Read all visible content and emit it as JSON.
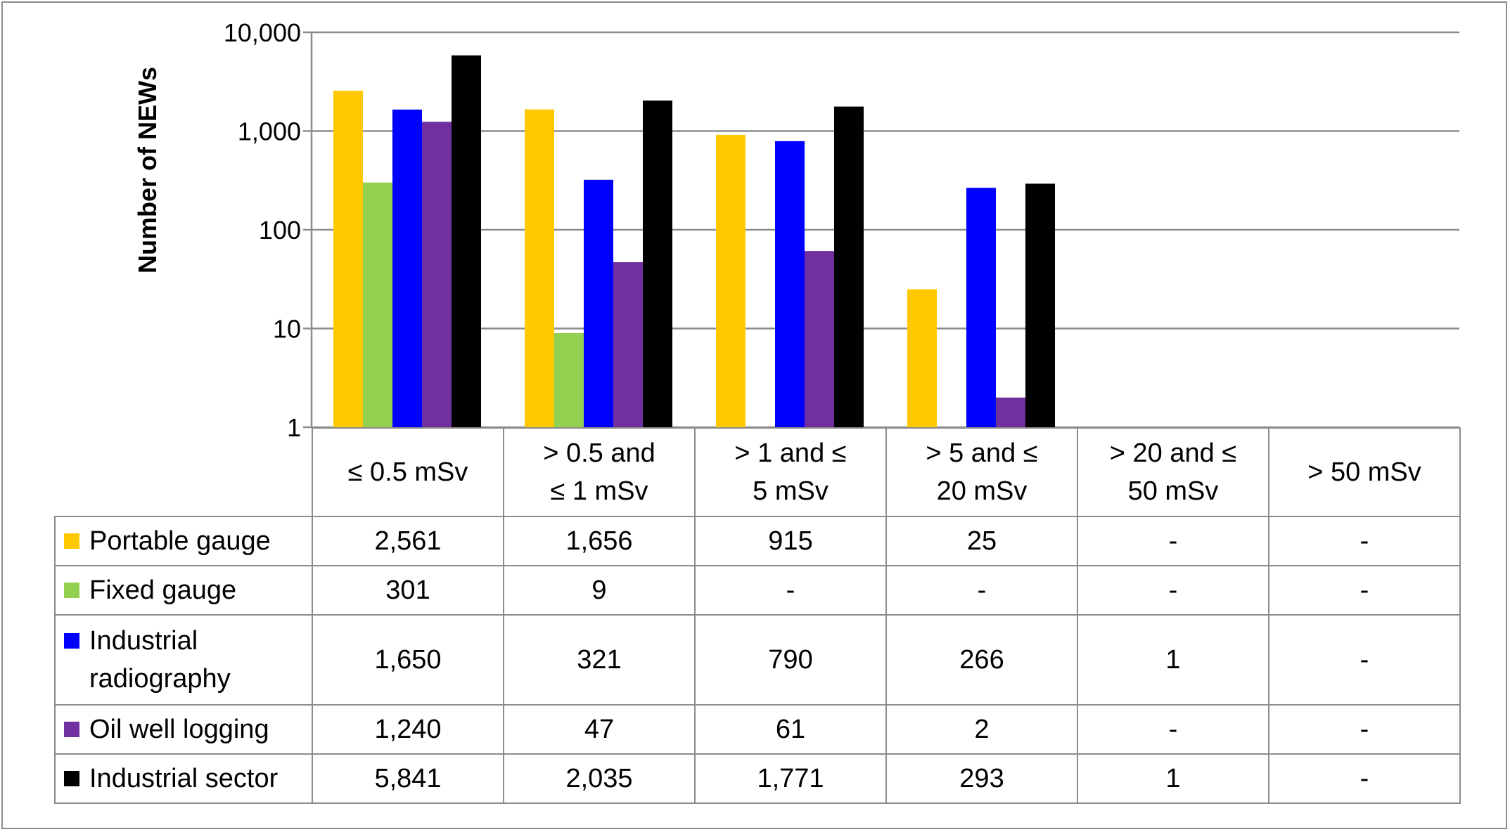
{
  "chart_data": {
    "type": "bar",
    "ylabel": "Number of NEWs",
    "yscale": "log",
    "ylim": [
      1,
      10000
    ],
    "ytick_labels": [
      "1",
      "10",
      "100",
      "1,000",
      "10,000"
    ],
    "categories": [
      "≤ 0.5 mSv",
      "> 0.5 and ≤ 1 mSv",
      "> 1 and ≤ 5 mSv",
      "> 5 and ≤ 20 mSv",
      "> 20 and ≤ 50 mSv",
      "> 50 mSv"
    ],
    "grid": true,
    "legend": "in data table",
    "series": [
      {
        "name": "Portable gauge",
        "color": "#FFC800",
        "values": [
          2561,
          1656,
          915,
          25,
          null,
          null
        ],
        "labels": [
          "2,561",
          "1,656",
          "915",
          "25",
          "-",
          "-"
        ]
      },
      {
        "name": "Fixed gauge",
        "color": "#92D050",
        "values": [
          301,
          9,
          null,
          null,
          null,
          null
        ],
        "labels": [
          "301",
          "9",
          "-",
          "-",
          "-",
          "-"
        ]
      },
      {
        "name": "Industrial radiography",
        "color": "#0000FF",
        "values": [
          1650,
          321,
          790,
          266,
          1,
          null
        ],
        "labels": [
          "1,650",
          "321",
          "790",
          "266",
          "1",
          "-"
        ]
      },
      {
        "name": "Oil well logging",
        "color": "#7030A0",
        "values": [
          1240,
          47,
          61,
          2,
          null,
          null
        ],
        "labels": [
          "1,240",
          "47",
          "61",
          "2",
          "-",
          "-"
        ]
      },
      {
        "name": "Industrial sector",
        "color": "#000000",
        "values": [
          5841,
          2035,
          1771,
          293,
          1,
          null
        ],
        "labels": [
          "5,841",
          "2,035",
          "1,771",
          "293",
          "1",
          "-"
        ]
      }
    ]
  }
}
